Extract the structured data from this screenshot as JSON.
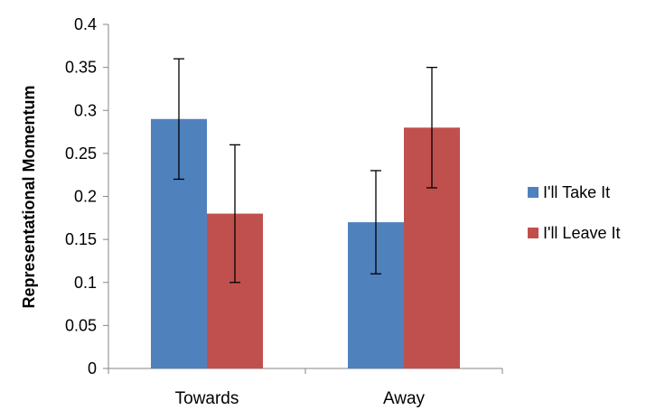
{
  "chart_data": {
    "type": "bar",
    "title": "",
    "xlabel": "",
    "ylabel": "Representational Momentum",
    "ylim": [
      0,
      0.4
    ],
    "yticks": [
      0,
      0.05,
      0.1,
      0.15,
      0.2,
      0.25,
      0.3,
      0.35,
      0.4
    ],
    "ytick_labels": [
      "0",
      "0.05",
      "0.1",
      "0.15",
      "0.2",
      "0.25",
      "0.3",
      "0.35",
      "0.4"
    ],
    "categories": [
      "Towards",
      "Away"
    ],
    "series": [
      {
        "name": "I'll Take It",
        "color": "#4f81bd",
        "values": [
          0.29,
          0.17
        ],
        "error_low": [
          0.22,
          0.11
        ],
        "error_high": [
          0.36,
          0.23
        ]
      },
      {
        "name": "I'll Leave It",
        "color": "#c0504d",
        "values": [
          0.18,
          0.28
        ],
        "error_low": [
          0.1,
          0.21
        ],
        "error_high": [
          0.26,
          0.35
        ]
      }
    ],
    "grid": false,
    "legend_position": "right"
  }
}
